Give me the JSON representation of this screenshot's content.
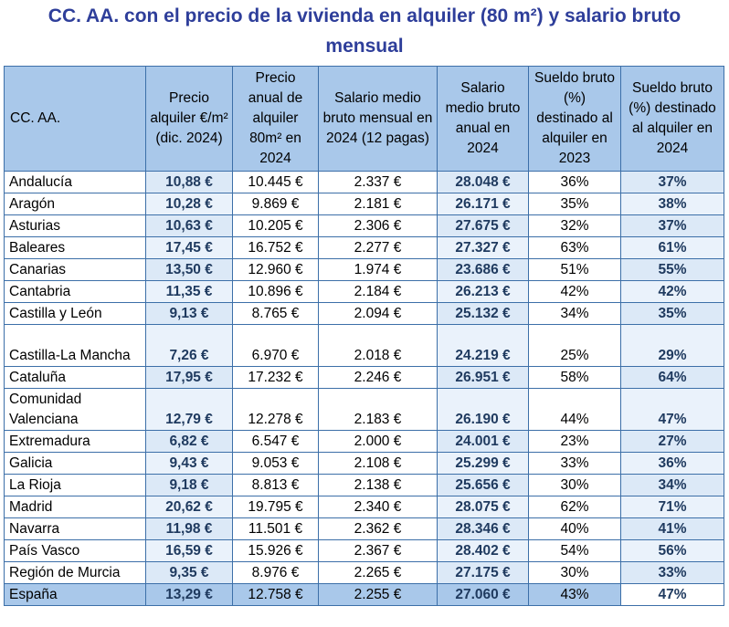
{
  "title": "CC. AA. con el precio de la vivienda en alquiler (80 m²) y salario bruto mensual",
  "columns": [
    "CC. AA.",
    "Precio alquiler €/m² (dic. 2024)",
    "Precio anual de alquiler 80m² en 2024",
    "Salario medio bruto mensual en 2024 (12 pagas)",
    "Salario medio bruto anual en 2024",
    "Sueldo bruto (%) destinado al alquiler en 2023",
    "Sueldo bruto (%) destinado al alquiler en 2024"
  ],
  "rows": [
    [
      "Andalucía",
      "10,88 €",
      "10.445 €",
      "2.337 €",
      "28.048 €",
      "36%",
      "37%"
    ],
    [
      "Aragón",
      "10,28 €",
      "9.869 €",
      "2.181 €",
      "26.171 €",
      "35%",
      "38%"
    ],
    [
      "Asturias",
      "10,63 €",
      "10.205 €",
      "2.306 €",
      "27.675 €",
      "32%",
      "37%"
    ],
    [
      "Baleares",
      "17,45 €",
      "16.752 €",
      "2.277 €",
      "27.327 €",
      "63%",
      "61%"
    ],
    [
      "Canarias",
      "13,50 €",
      "12.960 €",
      "1.974 €",
      "23.686 €",
      "51%",
      "55%"
    ],
    [
      "Cantabria",
      "11,35 €",
      "10.896 €",
      "2.184 €",
      "26.213 €",
      "42%",
      "42%"
    ],
    [
      "Castilla y León",
      "9,13 €",
      "8.765 €",
      "2.094 €",
      "25.132 €",
      "34%",
      "35%"
    ],
    [
      "Castilla-La Mancha",
      "7,26 €",
      "6.970 €",
      "2.018 €",
      "24.219 €",
      "25%",
      "29%"
    ],
    [
      "Cataluña",
      "17,95 €",
      "17.232 €",
      "2.246 €",
      "26.951 €",
      "58%",
      "64%"
    ],
    [
      "Comunidad Valenciana",
      "12,79 €",
      "12.278 €",
      "2.183 €",
      "26.190 €",
      "44%",
      "47%"
    ],
    [
      "Extremadura",
      "6,82 €",
      "6.547 €",
      "2.000 €",
      "24.001 €",
      "23%",
      "27%"
    ],
    [
      "Galicia",
      "9,43 €",
      "9.053 €",
      "2.108 €",
      "25.299 €",
      "33%",
      "36%"
    ],
    [
      "La Rioja",
      "9,18 €",
      "8.813 €",
      "2.138 €",
      "25.656 €",
      "30%",
      "34%"
    ],
    [
      "Madrid",
      "20,62 €",
      "19.795 €",
      "2.340 €",
      "28.075 €",
      "62%",
      "71%"
    ],
    [
      "Navarra",
      "11,98 €",
      "11.501 €",
      "2.362 €",
      "28.346 €",
      "40%",
      "41%"
    ],
    [
      "País Vasco",
      "16,59 €",
      "15.926 €",
      "2.367 €",
      "28.402 €",
      "54%",
      "56%"
    ],
    [
      "Región de Murcia",
      "9,35 €",
      "8.976 €",
      "2.265 €",
      "27.175 €",
      "30%",
      "33%"
    ]
  ],
  "total": [
    "España",
    "13,29 €",
    "12.758 €",
    "2.255 €",
    "27.060 €",
    "43%",
    "47%"
  ],
  "colors": {
    "title": "#2e3e9a",
    "header_bg": "#a9c8ea",
    "border": "#3c6fa8",
    "bold_text": "#1f3a5f"
  }
}
